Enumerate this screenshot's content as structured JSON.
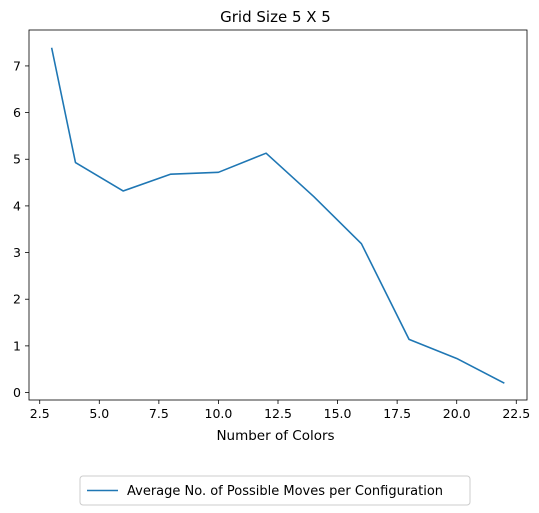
{
  "chart_data": {
    "type": "line",
    "title": "Grid Size 5 X 5",
    "xlabel": "Number of Colors",
    "ylabel": "",
    "xlim": [
      2.05,
      22.95
    ],
    "ylim": [
      -0.16,
      7.77
    ],
    "xticks": [
      2.5,
      5.0,
      7.5,
      10.0,
      12.5,
      15.0,
      17.5,
      20.0,
      22.5
    ],
    "xtick_labels": [
      "2.5",
      "5.0",
      "7.5",
      "10.0",
      "12.5",
      "15.0",
      "17.5",
      "20.0",
      "22.5"
    ],
    "yticks": [
      0,
      1,
      2,
      3,
      4,
      5,
      6,
      7
    ],
    "ytick_labels": [
      "0",
      "1",
      "2",
      "3",
      "4",
      "5",
      "6",
      "7"
    ],
    "grid": false,
    "legend_position": "bottom-center-outside",
    "series": [
      {
        "name": "Average No. of Possible Moves per Configuration",
        "color": "#1f77b4",
        "x": [
          3,
          4,
          6,
          8,
          10,
          12,
          14,
          16,
          18,
          20,
          22
        ],
        "y": [
          7.39,
          4.93,
          4.32,
          4.68,
          4.72,
          5.13,
          4.2,
          3.19,
          1.14,
          0.73,
          0.2
        ]
      }
    ]
  }
}
